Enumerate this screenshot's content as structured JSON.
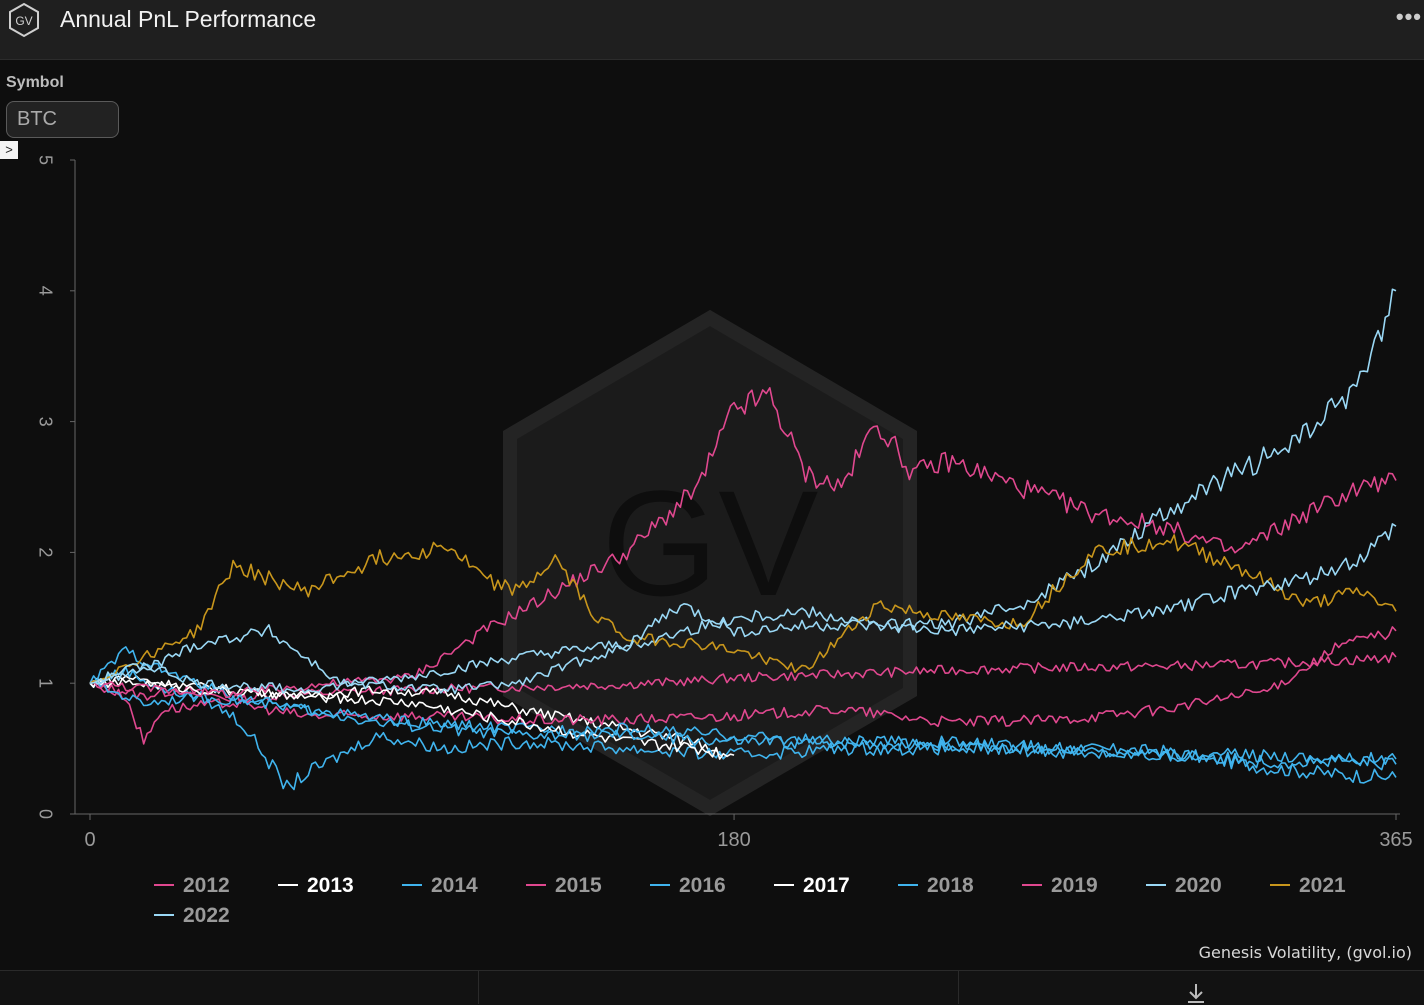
{
  "header": {
    "title": "Annual PnL Performance",
    "logo_text": "GV",
    "more_icon": "ellipsis-icon",
    "more_label": "•••"
  },
  "controls": {
    "symbol_label": "Symbol",
    "symbol_value": "BTC",
    "expander_glyph": ">"
  },
  "colors": {
    "pink": "#e0488f",
    "white": "#ffffff",
    "blue": "#40b4ee",
    "lightblue": "#9ad8f5",
    "gold": "#c8961c",
    "background": "#0e0e0e"
  },
  "chart_data": {
    "type": "line",
    "title": "Annual PnL Performance",
    "xlabel": "",
    "ylabel": "",
    "xlim": [
      0,
      365
    ],
    "ylim": [
      0,
      5
    ],
    "x_ticks": [
      "0",
      "180",
      "365"
    ],
    "y_ticks": [
      "0",
      "1",
      "2",
      "3",
      "4",
      "5"
    ],
    "grid": false,
    "legend_position": "bottom",
    "watermark": "GV",
    "series": [
      {
        "name": "2012",
        "color": "#e0488f",
        "bold": false,
        "x": [
          0,
          15,
          25,
          40,
          60,
          90,
          120,
          150,
          170,
          180,
          210,
          240,
          270,
          300,
          330,
          355,
          365
        ],
        "y": [
          1.0,
          0.9,
          0.95,
          0.88,
          0.92,
          0.95,
          0.97,
          0.99,
          1.02,
          1.04,
          1.07,
          1.1,
          1.12,
          1.13,
          1.15,
          1.18,
          1.2
        ]
      },
      {
        "name": "2013",
        "color": "#ffffff",
        "bold": true,
        "x": [
          0,
          10,
          20,
          40,
          60,
          80,
          100,
          120,
          140,
          160,
          170,
          175,
          178
        ],
        "y": [
          1.0,
          1.05,
          1.0,
          0.95,
          0.9,
          0.95,
          0.92,
          0.8,
          0.7,
          0.6,
          0.55,
          0.5,
          0.45
        ]
      },
      {
        "name": "2014",
        "color": "#40b4ee",
        "bold": false,
        "x": [
          0,
          10,
          20,
          30,
          40,
          45,
          50,
          55,
          60,
          80,
          100,
          120,
          150,
          180,
          210,
          240,
          270,
          300,
          330,
          350,
          365
        ],
        "y": [
          1.0,
          1.1,
          0.95,
          0.9,
          0.75,
          0.6,
          0.4,
          0.2,
          0.3,
          0.6,
          0.5,
          0.55,
          0.5,
          0.45,
          0.5,
          0.5,
          0.48,
          0.45,
          0.4,
          0.4,
          0.38
        ]
      },
      {
        "name": "2015",
        "color": "#e0488f",
        "bold": false,
        "x": [
          0,
          10,
          15,
          20,
          40,
          60,
          90,
          120,
          150,
          180,
          210,
          240,
          270,
          300,
          330,
          350,
          365
        ],
        "y": [
          1.0,
          0.9,
          0.55,
          0.8,
          0.85,
          0.75,
          0.75,
          0.72,
          0.72,
          0.75,
          0.8,
          0.7,
          0.72,
          0.8,
          0.95,
          1.3,
          1.4
        ]
      },
      {
        "name": "2016",
        "color": "#40b4ee",
        "bold": false,
        "x": [
          0,
          15,
          30,
          60,
          90,
          120,
          150,
          180,
          210,
          240,
          270,
          300,
          330,
          350,
          365
        ],
        "y": [
          1.0,
          0.85,
          0.9,
          0.8,
          0.7,
          0.65,
          0.65,
          0.6,
          0.55,
          0.55,
          0.5,
          0.45,
          0.45,
          0.42,
          0.42
        ]
      },
      {
        "name": "2017",
        "color": "#ffffff",
        "bold": true,
        "x": [
          0,
          15,
          30,
          60,
          90,
          110,
          130,
          150,
          170,
          180
        ],
        "y": [
          1.0,
          1.0,
          0.95,
          0.9,
          0.85,
          0.75,
          0.65,
          0.55,
          0.5,
          0.45
        ]
      },
      {
        "name": "2018",
        "color": "#40b4ee",
        "bold": false,
        "x": [
          0,
          10,
          20,
          40,
          60,
          80,
          100,
          120,
          150,
          180,
          210,
          240,
          270,
          300,
          330,
          350,
          365
        ],
        "y": [
          1.0,
          1.25,
          1.1,
          0.9,
          0.8,
          0.7,
          0.65,
          0.6,
          0.6,
          0.55,
          0.55,
          0.52,
          0.5,
          0.48,
          0.35,
          0.3,
          0.28
        ]
      },
      {
        "name": "2019",
        "color": "#e0488f",
        "bold": false,
        "x": [
          0,
          20,
          40,
          60,
          90,
          110,
          130,
          150,
          170,
          180,
          190,
          200,
          210,
          220,
          230,
          240,
          260,
          280,
          300,
          320,
          340,
          355,
          365
        ],
        "y": [
          1.0,
          0.95,
          0.92,
          0.98,
          1.05,
          1.4,
          1.7,
          2.0,
          2.5,
          3.1,
          3.2,
          2.6,
          2.5,
          3.0,
          2.6,
          2.7,
          2.5,
          2.3,
          2.2,
          2.0,
          2.3,
          2.5,
          2.55
        ]
      },
      {
        "name": "2020",
        "color": "#9ad8f5",
        "bold": false,
        "x": [
          0,
          15,
          30,
          50,
          70,
          100,
          120,
          140,
          160,
          180,
          200,
          220,
          240,
          260,
          280,
          300,
          320,
          340,
          355,
          365
        ],
        "y": [
          1.0,
          1.1,
          1.3,
          1.4,
          1.0,
          0.95,
          1.0,
          1.2,
          1.35,
          1.5,
          1.55,
          1.45,
          1.45,
          1.6,
          1.9,
          2.3,
          2.6,
          2.9,
          3.3,
          4.0
        ]
      },
      {
        "name": "2021",
        "color": "#c8961c",
        "bold": false,
        "x": [
          0,
          15,
          30,
          40,
          60,
          80,
          100,
          110,
          120,
          130,
          140,
          150,
          170,
          180,
          200,
          220,
          240,
          260,
          280,
          300,
          320,
          340,
          355,
          365
        ],
        "y": [
          1.0,
          1.2,
          1.4,
          1.9,
          1.7,
          1.95,
          2.05,
          1.8,
          1.7,
          1.95,
          1.55,
          1.35,
          1.3,
          1.25,
          1.1,
          1.6,
          1.5,
          1.45,
          2.0,
          2.1,
          1.9,
          1.6,
          1.7,
          1.55
        ]
      },
      {
        "name": "2022",
        "color": "#9ad8f5",
        "bold": false,
        "x": [
          0,
          15,
          30,
          60,
          90,
          120,
          150,
          165,
          180,
          210,
          240,
          270,
          300,
          320,
          340,
          355,
          365
        ],
        "y": [
          1.0,
          1.15,
          1.0,
          0.95,
          1.05,
          1.2,
          1.3,
          1.6,
          1.4,
          1.45,
          1.4,
          1.45,
          1.55,
          1.7,
          1.8,
          1.95,
          2.2
        ]
      }
    ]
  },
  "footer": {
    "credit": "Genesis Volatility, (gvol.io)",
    "download_icon": "download-icon"
  }
}
